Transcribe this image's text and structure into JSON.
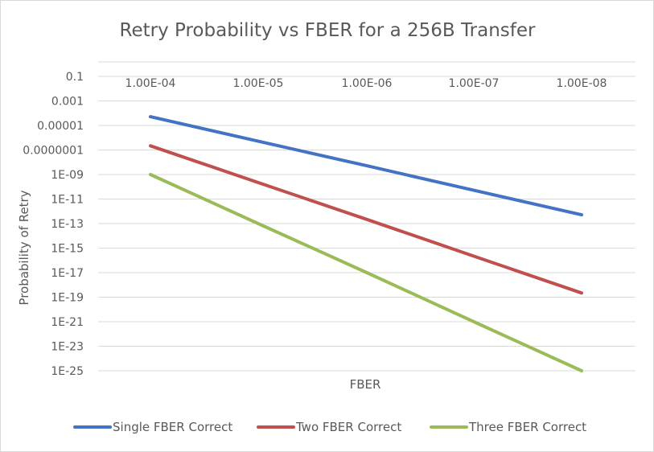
{
  "chart_data": {
    "type": "line",
    "title": "Retry Probability vs FBER for a 256B Transfer",
    "xlabel": "FBER",
    "ylabel": "Probability of Retry",
    "y_scale": "log",
    "ylim_exponent": [
      -25,
      -1
    ],
    "categories": [
      "1.00E-04",
      "1.00E-05",
      "1.00E-06",
      "1.00E-07",
      "1.00E-08"
    ],
    "y_tick_labels": [
      "0.1",
      "0.001",
      "0.00001",
      "0.0000001",
      "1E-09",
      "1E-11",
      "1E-13",
      "1E-15",
      "1E-17",
      "1E-19",
      "1E-21",
      "1E-23",
      "1E-25"
    ],
    "legend_position": "bottom",
    "series": [
      {
        "name": "Single FBER Correct",
        "color": "#4472c4",
        "values": [
          5.2e-05,
          5.2e-07,
          5.2e-09,
          5.2e-11,
          5.2e-13
        ]
      },
      {
        "name": "Two FBER Correct",
        "color": "#c0504d",
        "values": [
          2.2e-07,
          2.2e-10,
          2.2e-13,
          2.2e-16,
          2.2e-19
        ]
      },
      {
        "name": "Three FBER Correct",
        "color": "#9bbb59",
        "values": [
          1e-09,
          1e-13,
          1e-17,
          1e-21,
          1e-25
        ]
      }
    ]
  }
}
